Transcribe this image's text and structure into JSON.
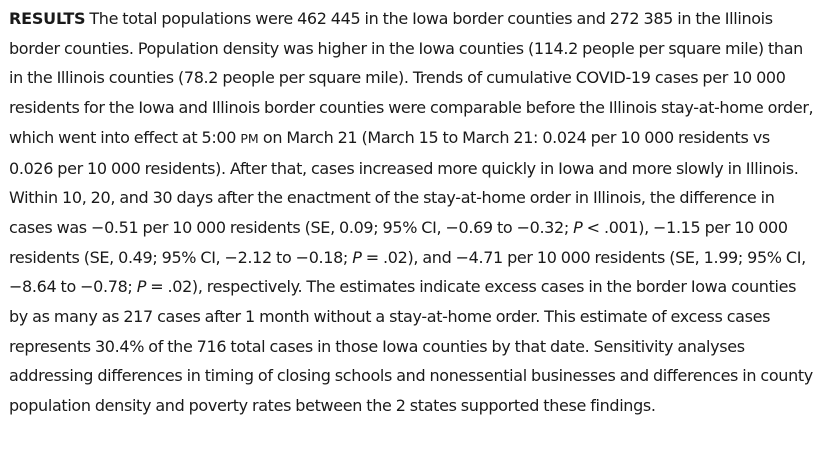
{
  "heading": "RESULTS",
  "s1": "The total populations were 462 445 in the Iowa border counties and 272 385 in the Illinois border counties. Population density was higher in the Iowa counties (114.2 people per square mile) than in the Illinois counties (78.2 people per square mile). Trends of cumulative COVID-19 cases per 10 000 residents for the Iowa and Illinois border counties were comparable before the Illinois stay-at-home order, which went into effect at 5:00 ",
  "pm": "PM",
  "s2": " on March 21 (March 15 to March 21: 0.024 per 10 000 residents vs 0.026 per 10 000 residents). After that, cases increased more quickly in Iowa and more slowly in Illinois. Within 10, 20, and 30 days after the enactment of the stay-at-home order in Illinois, the difference in cases was −0.51 per 10 000 residents (SE, 0.09; 95% CI, −0.69 to −0.32; ",
  "p1_label": "P",
  "s3": " < .001), −1.15 per 10 000 residents (SE, 0.49; 95% CI, −2.12 to −0.18; ",
  "p2_label": "P",
  "s4": " = .02), and −4.71 per 10 000 residents (SE, 1.99; 95% CI, −8.64 to −0.78; ",
  "p3_label": "P",
  "s5": " = .02), respectively. The estimates indicate excess cases in the border Iowa counties by as many as 217 cases after 1 month without a stay-at-home order. This estimate of excess cases represents 30.4% of the 716 total cases in those Iowa counties by that date. Sensitivity analyses addressing differences in timing of closing schools and nonessential businesses and differences in county population density and poverty rates between the 2 states supported these findings."
}
